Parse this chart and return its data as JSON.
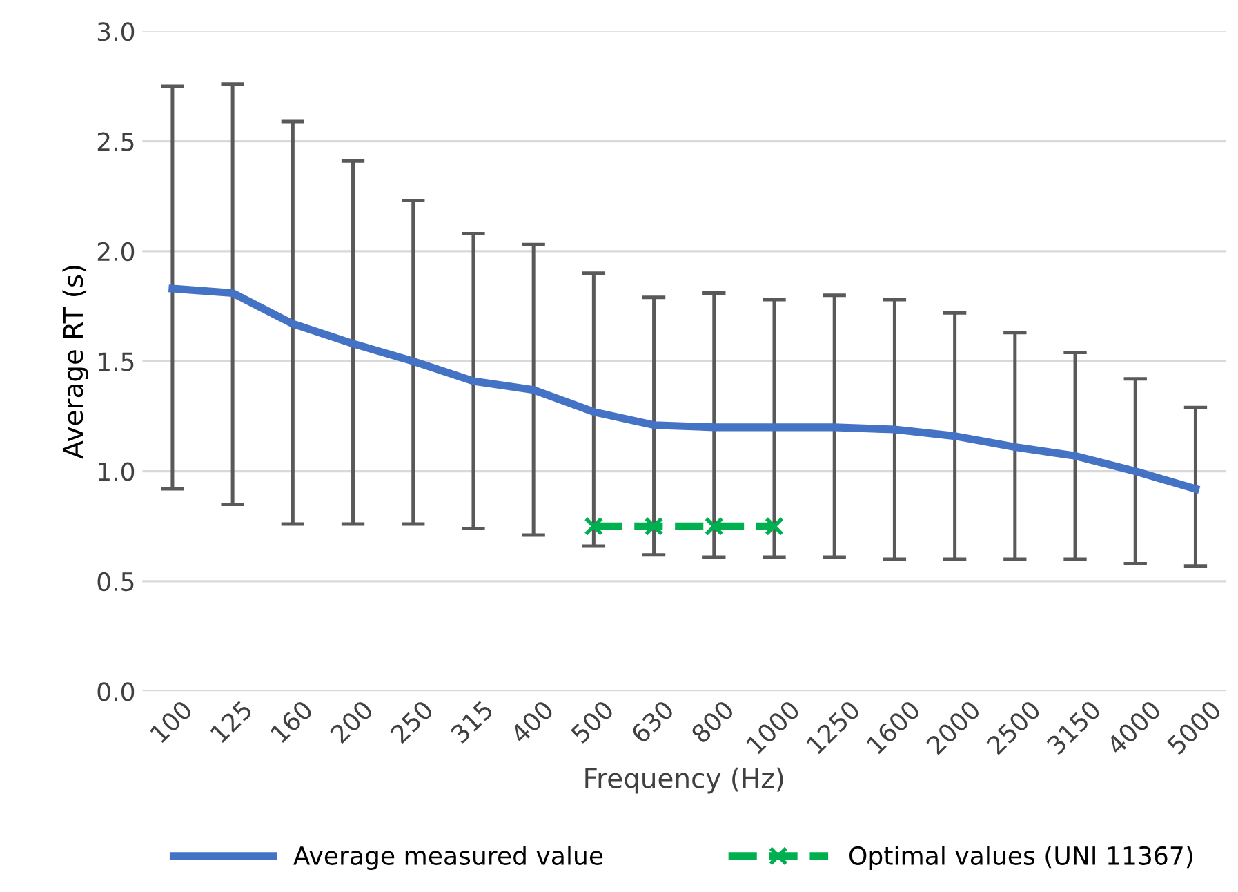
{
  "chart_data": {
    "type": "line",
    "xlabel": "Frequency (Hz)",
    "ylabel": "Average RT (s)",
    "categories": [
      "100",
      "125",
      "160",
      "200",
      "250",
      "315",
      "400",
      "500",
      "630",
      "800",
      "1000",
      "1250",
      "1600",
      "2000",
      "2500",
      "3150",
      "4000",
      "5000"
    ],
    "series": [
      {
        "name": "Average measured value",
        "color": "#4472c4",
        "marker": "none",
        "line_style": "solid",
        "values": [
          1.83,
          1.81,
          1.67,
          1.58,
          1.5,
          1.41,
          1.37,
          1.27,
          1.21,
          1.2,
          1.2,
          1.2,
          1.19,
          1.16,
          1.11,
          1.07,
          1.0,
          0.92
        ],
        "errors": [
          [
            0.92,
            2.75
          ],
          [
            0.85,
            2.76
          ],
          [
            0.76,
            2.59
          ],
          [
            0.76,
            2.41
          ],
          [
            0.76,
            2.23
          ],
          [
            0.74,
            2.08
          ],
          [
            0.71,
            2.03
          ],
          [
            0.66,
            1.9
          ],
          [
            0.62,
            1.79
          ],
          [
            0.61,
            1.81
          ],
          [
            0.61,
            1.78
          ],
          [
            0.61,
            1.8
          ],
          [
            0.6,
            1.78
          ],
          [
            0.6,
            1.72
          ],
          [
            0.6,
            1.63
          ],
          [
            0.6,
            1.54
          ],
          [
            0.58,
            1.42
          ],
          [
            0.57,
            1.29
          ]
        ]
      },
      {
        "name": "Optimal values (UNI 11367)",
        "color": "#00b050",
        "marker": "cross",
        "line_style": "dashed",
        "values": [
          null,
          null,
          null,
          null,
          null,
          null,
          null,
          0.75,
          0.75,
          0.75,
          0.75,
          null,
          null,
          null,
          null,
          null,
          null,
          null
        ]
      }
    ],
    "ylim": [
      0,
      3
    ],
    "yticks": [
      {
        "value": 0,
        "label": "0.0"
      },
      {
        "value": 0.5,
        "label": "0.5"
      },
      {
        "value": 1,
        "label": "1.0"
      },
      {
        "value": 1.5,
        "label": "1.5"
      },
      {
        "value": 2,
        "label": "2.0"
      },
      {
        "value": 2.5,
        "label": "2.5"
      },
      {
        "value": 3,
        "label": "3.0"
      }
    ],
    "grid": "y",
    "legend": "bottom"
  }
}
